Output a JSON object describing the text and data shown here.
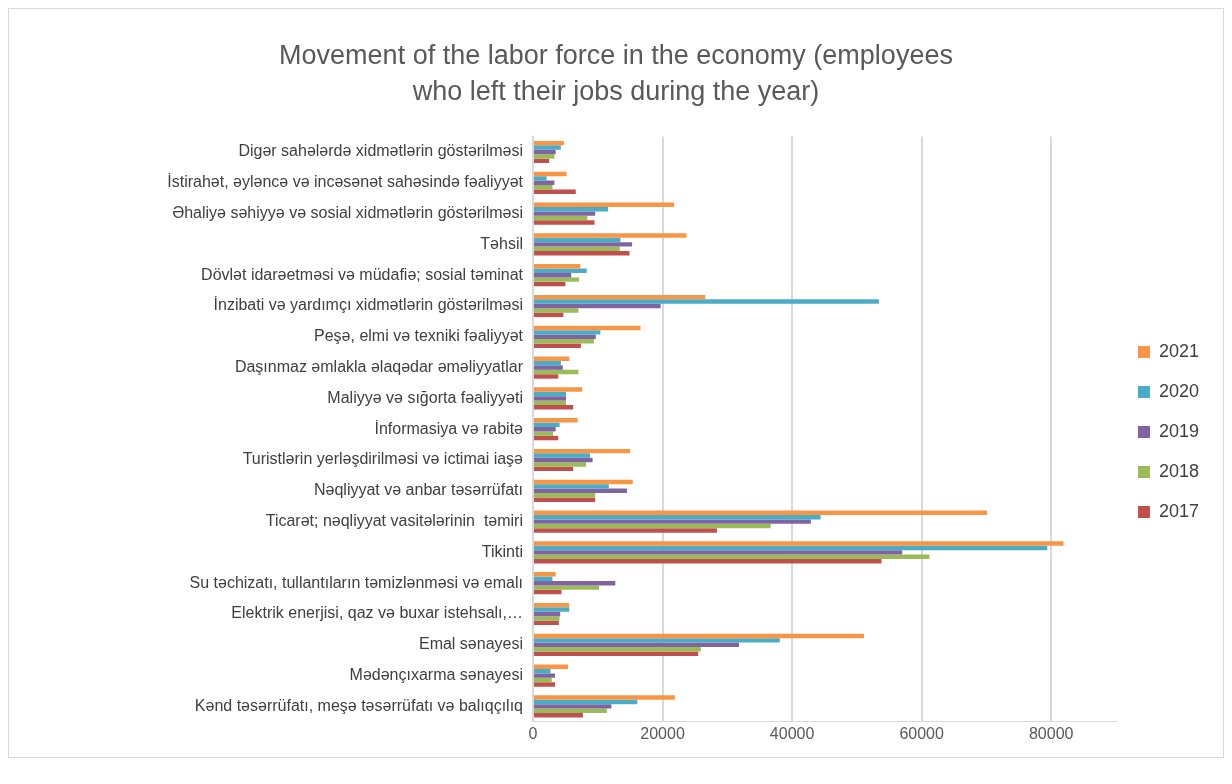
{
  "chart_data": {
    "type": "bar",
    "orientation": "horizontal",
    "title": "Movement of the labor force in the economy (employees who left their jobs during the year)",
    "categories": [
      "Digər sahələrdə xidmətlərin göstərilməsi",
      "İstirahət, əyləncə və incəsənət sahəsində fəaliyyət",
      "Əhaliyə səhiyyə və sosial xidmətlərin göstərilməsi",
      "Təhsil",
      "Dövlət idarəetməsi və müdafiə; sosial təminat",
      "İnzibati və yardımçı xidmətlərin göstərilməsi",
      "Peşə, elmi və texniki fəaliyyət",
      "Daşınmaz əmlakla əlaqədar əməliyyatlar",
      "Maliyyə və sığorta fəaliyyəti",
      "İnformasiya və rabitə",
      "Turistlərin yerləşdirilməsi və ictimai iaşə",
      "Nəqliyyat və anbar təsərrüfatı",
      "Ticarət; nəqliyyat vasitələrinin  təmiri",
      "Tikinti",
      "Su təchizatı, tullantıların təmizlənməsi və emalı",
      "Elektrik enerjisi, qaz və buxar istehsalı,…",
      "Emal sənayesi",
      "Mədənçıxarma sənayesi",
      "Kənd təsərrüfatı, meşə təsərrüfatı və balıqçılıq"
    ],
    "series": [
      {
        "name": "2021",
        "color": "#f79646",
        "values": [
          4800,
          5200,
          21800,
          23700,
          7300,
          26600,
          16600,
          5600,
          7600,
          6900,
          15000,
          15400,
          70100,
          81900,
          3500,
          5600,
          51100,
          5400,
          21900
        ]
      },
      {
        "name": "2020",
        "color": "#4bacc6",
        "values": [
          4300,
          2100,
          11600,
          13500,
          8300,
          53400,
          10400,
          4300,
          5100,
          4100,
          8800,
          11700,
          44400,
          79400,
          3000,
          5600,
          38100,
          2700,
          16100
        ]
      },
      {
        "name": "2019",
        "color": "#8064a2",
        "values": [
          3500,
          3300,
          9600,
          15300,
          5900,
          19700,
          9700,
          4600,
          5100,
          3500,
          9200,
          14500,
          42900,
          57000,
          12700,
          4200,
          31800,
          3400,
          12100
        ]
      },
      {
        "name": "2018",
        "color": "#9bbb59",
        "values": [
          3300,
          3000,
          8400,
          13400,
          7100,
          7000,
          9400,
          7000,
          5100,
          3100,
          8200,
          9600,
          36700,
          61200,
          10200,
          4100,
          25900,
          2900,
          11400
        ]
      },
      {
        "name": "2017",
        "color": "#c0504d",
        "values": [
          2500,
          6600,
          9500,
          14900,
          5000,
          4700,
          7400,
          3900,
          6200,
          3900,
          6200,
          9600,
          28400,
          53800,
          4400,
          4000,
          25500,
          3400,
          7700
        ]
      }
    ],
    "xlim": [
      0,
      90000
    ],
    "xticks": [
      0,
      20000,
      40000,
      60000,
      80000
    ],
    "grid": "x",
    "legend": "right"
  }
}
